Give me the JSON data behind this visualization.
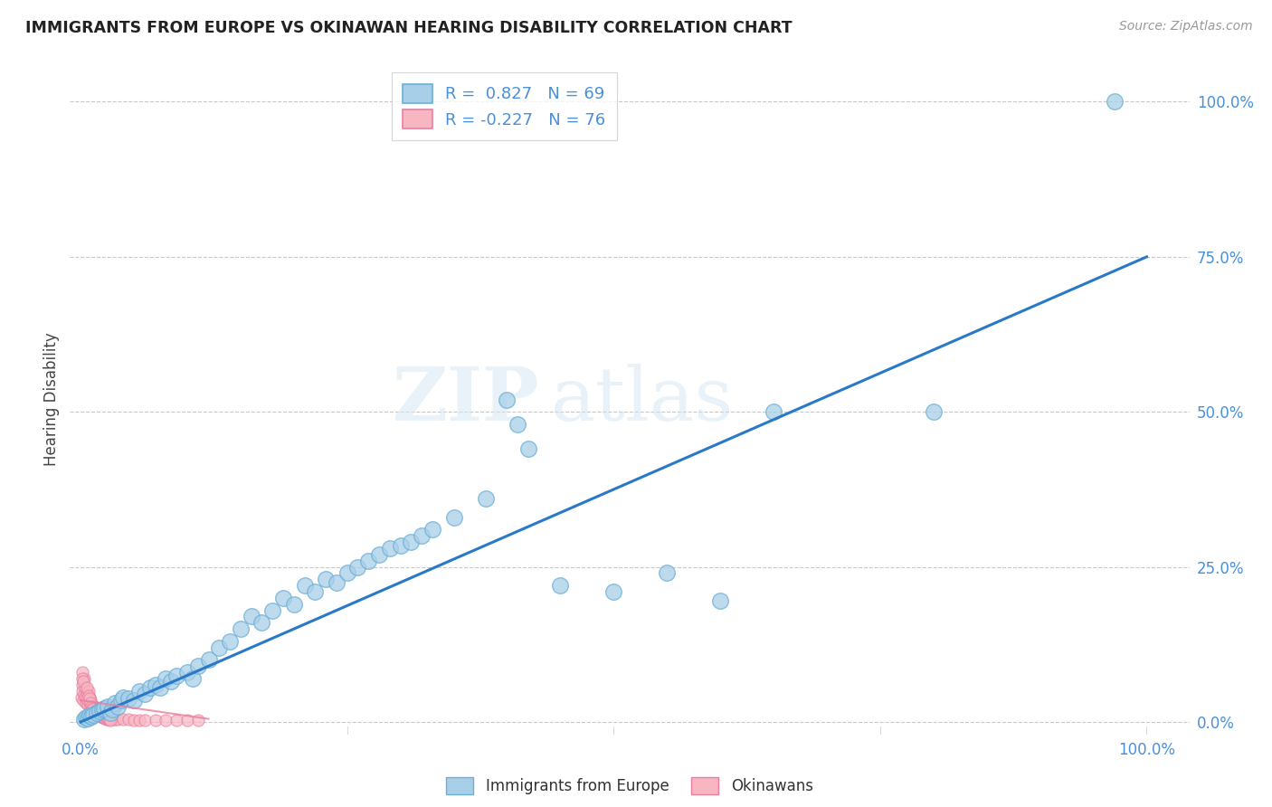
{
  "title": "IMMIGRANTS FROM EUROPE VS OKINAWAN HEARING DISABILITY CORRELATION CHART",
  "source": "Source: ZipAtlas.com",
  "ylabel": "Hearing Disability",
  "ytick_labels": [
    "0.0%",
    "25.0%",
    "50.0%",
    "75.0%",
    "100.0%"
  ],
  "ytick_values": [
    0,
    25,
    50,
    75,
    100
  ],
  "xtick_labels_only": [
    "0.0%",
    "100.0%"
  ],
  "xtick_values_only": [
    0,
    100
  ],
  "xlim": [
    -1,
    104
  ],
  "ylim": [
    -2,
    106
  ],
  "blue_color": "#a8cfe8",
  "blue_edge_color": "#6baed6",
  "pink_color": "#f7b6c2",
  "pink_edge_color": "#e87ea0",
  "line_color": "#2979c8",
  "watermark_zip": "ZIP",
  "watermark_atlas": "atlas",
  "background_color": "#ffffff",
  "grid_color": "#c8c8c8",
  "tick_color": "#4a90d9",
  "title_color": "#222222",
  "ylabel_color": "#444444",
  "blue_points": [
    [
      0.3,
      0.5
    ],
    [
      0.5,
      0.8
    ],
    [
      0.7,
      0.6
    ],
    [
      0.8,
      1.0
    ],
    [
      1.0,
      0.9
    ],
    [
      1.2,
      1.2
    ],
    [
      1.5,
      1.5
    ],
    [
      1.8,
      1.8
    ],
    [
      2.0,
      2.0
    ],
    [
      2.2,
      2.2
    ],
    [
      2.5,
      2.5
    ],
    [
      2.8,
      1.5
    ],
    [
      3.0,
      2.0
    ],
    [
      3.2,
      3.0
    ],
    [
      3.5,
      2.5
    ],
    [
      3.8,
      3.5
    ],
    [
      4.0,
      4.0
    ],
    [
      4.5,
      3.8
    ],
    [
      5.0,
      3.5
    ],
    [
      5.5,
      5.0
    ],
    [
      6.0,
      4.5
    ],
    [
      6.5,
      5.5
    ],
    [
      7.0,
      6.0
    ],
    [
      7.5,
      5.5
    ],
    [
      8.0,
      7.0
    ],
    [
      8.5,
      6.5
    ],
    [
      9.0,
      7.5
    ],
    [
      10.0,
      8.0
    ],
    [
      10.5,
      7.0
    ],
    [
      11.0,
      9.0
    ],
    [
      12.0,
      10.0
    ],
    [
      13.0,
      12.0
    ],
    [
      14.0,
      13.0
    ],
    [
      15.0,
      15.0
    ],
    [
      16.0,
      17.0
    ],
    [
      17.0,
      16.0
    ],
    [
      18.0,
      18.0
    ],
    [
      19.0,
      20.0
    ],
    [
      20.0,
      19.0
    ],
    [
      21.0,
      22.0
    ],
    [
      22.0,
      21.0
    ],
    [
      23.0,
      23.0
    ],
    [
      24.0,
      22.5
    ],
    [
      25.0,
      24.0
    ],
    [
      26.0,
      25.0
    ],
    [
      27.0,
      26.0
    ],
    [
      28.0,
      27.0
    ],
    [
      29.0,
      28.0
    ],
    [
      30.0,
      28.5
    ],
    [
      31.0,
      29.0
    ],
    [
      32.0,
      30.0
    ],
    [
      33.0,
      31.0
    ],
    [
      35.0,
      33.0
    ],
    [
      38.0,
      36.0
    ],
    [
      40.0,
      52.0
    ],
    [
      41.0,
      48.0
    ],
    [
      42.0,
      44.0
    ],
    [
      45.0,
      22.0
    ],
    [
      50.0,
      21.0
    ],
    [
      55.0,
      24.0
    ],
    [
      60.0,
      19.5
    ],
    [
      65.0,
      50.0
    ],
    [
      80.0,
      50.0
    ],
    [
      97.0,
      100.0
    ]
  ],
  "pink_points": [
    [
      0.1,
      4.0
    ],
    [
      0.15,
      6.0
    ],
    [
      0.2,
      5.0
    ],
    [
      0.25,
      3.5
    ],
    [
      0.3,
      4.5
    ],
    [
      0.35,
      7.0
    ],
    [
      0.4,
      5.5
    ],
    [
      0.45,
      4.0
    ],
    [
      0.5,
      3.0
    ],
    [
      0.6,
      4.5
    ],
    [
      0.65,
      3.5
    ],
    [
      0.7,
      2.8
    ],
    [
      0.75,
      5.0
    ],
    [
      0.8,
      3.2
    ],
    [
      0.85,
      4.0
    ],
    [
      0.9,
      2.5
    ],
    [
      0.95,
      3.5
    ],
    [
      1.0,
      2.0
    ],
    [
      1.1,
      2.8
    ],
    [
      1.2,
      1.8
    ],
    [
      1.3,
      2.5
    ],
    [
      1.4,
      1.5
    ],
    [
      1.5,
      2.0
    ],
    [
      1.6,
      1.8
    ],
    [
      1.7,
      1.5
    ],
    [
      1.8,
      1.2
    ],
    [
      1.9,
      1.8
    ],
    [
      2.0,
      1.0
    ],
    [
      2.1,
      1.5
    ],
    [
      2.2,
      1.0
    ],
    [
      2.3,
      1.3
    ],
    [
      2.4,
      0.8
    ],
    [
      2.5,
      1.0
    ],
    [
      2.6,
      0.8
    ],
    [
      2.7,
      0.6
    ],
    [
      2.8,
      0.8
    ],
    [
      2.9,
      0.5
    ],
    [
      3.0,
      0.7
    ],
    [
      3.2,
      0.5
    ],
    [
      3.5,
      0.5
    ],
    [
      4.0,
      0.4
    ],
    [
      4.5,
      0.4
    ],
    [
      5.0,
      0.3
    ],
    [
      5.5,
      0.3
    ],
    [
      6.0,
      0.3
    ],
    [
      7.0,
      0.3
    ],
    [
      8.0,
      0.3
    ],
    [
      9.0,
      0.3
    ],
    [
      10.0,
      0.3
    ],
    [
      11.0,
      0.3
    ],
    [
      0.12,
      8.0
    ],
    [
      0.18,
      7.0
    ],
    [
      0.28,
      6.5
    ],
    [
      0.55,
      5.5
    ],
    [
      0.62,
      3.8
    ],
    [
      0.72,
      4.2
    ],
    [
      0.82,
      3.8
    ],
    [
      0.92,
      3.0
    ],
    [
      1.02,
      2.5
    ],
    [
      1.12,
      2.2
    ],
    [
      1.22,
      2.0
    ],
    [
      1.32,
      1.8
    ],
    [
      1.42,
      1.6
    ],
    [
      1.52,
      1.4
    ],
    [
      1.62,
      1.3
    ],
    [
      1.72,
      1.1
    ],
    [
      1.82,
      1.0
    ],
    [
      1.92,
      0.9
    ],
    [
      2.02,
      0.8
    ],
    [
      2.12,
      0.7
    ],
    [
      2.22,
      0.7
    ],
    [
      2.32,
      0.6
    ],
    [
      2.42,
      0.5
    ],
    [
      2.52,
      0.5
    ],
    [
      2.62,
      0.4
    ],
    [
      2.72,
      0.4
    ],
    [
      2.82,
      0.3
    ]
  ],
  "trend_x0": 0,
  "trend_y0": 0,
  "trend_x1": 100,
  "trend_y1": 75,
  "pink_trend_x0": 0,
  "pink_trend_y0": 3.5,
  "pink_trend_x1": 12,
  "pink_trend_y1": 0.5
}
